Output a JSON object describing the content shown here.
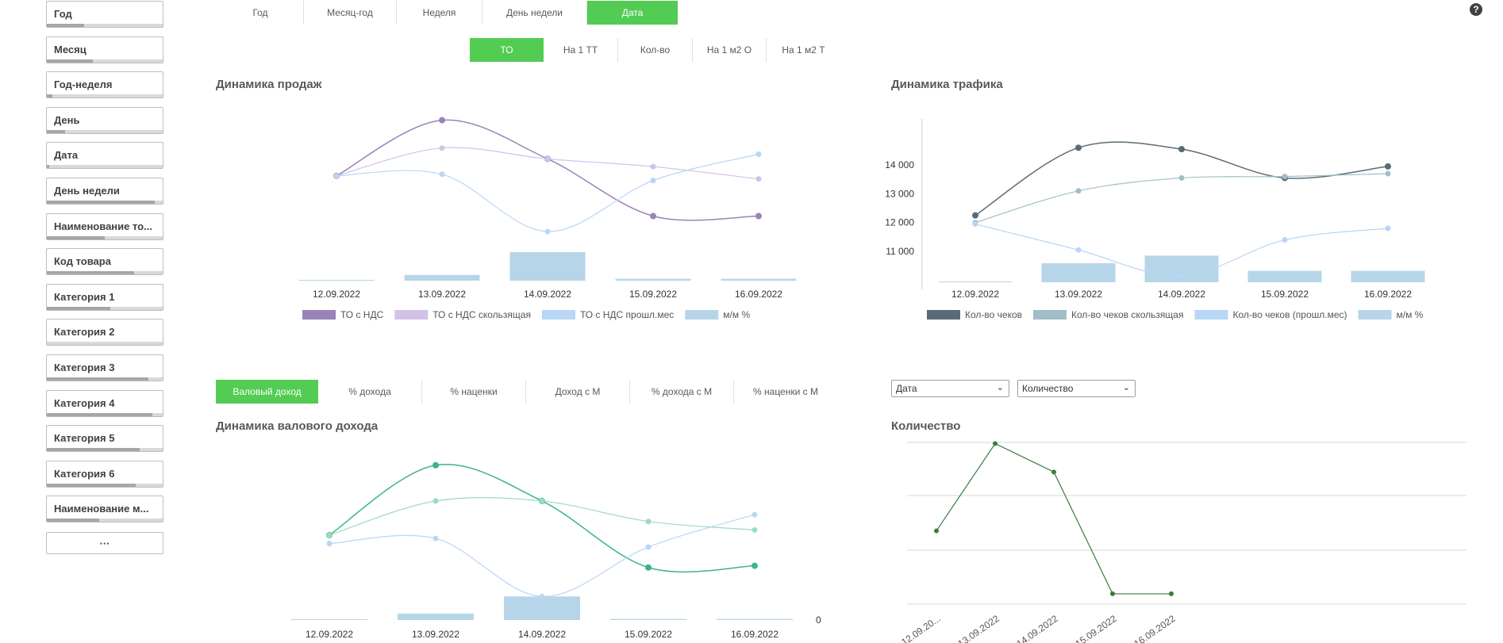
{
  "filters": [
    {
      "label": "Год",
      "fill": 0.32
    },
    {
      "label": "Месяц",
      "fill": 0.4
    },
    {
      "label": "Год-неделя",
      "fill": 0.05
    },
    {
      "label": "День",
      "fill": 0.16
    },
    {
      "label": "Дата",
      "fill": 0.02
    },
    {
      "label": "День недели",
      "fill": 0.93
    },
    {
      "label": "Наименование то...",
      "fill": 0.5
    },
    {
      "label": "Код товара",
      "fill": 0.75
    },
    {
      "label": "Категория 1",
      "fill": 0.55
    },
    {
      "label": "Категория 2",
      "fill": 0.0
    },
    {
      "label": "Категория 3",
      "fill": 0.88
    },
    {
      "label": "Категория 4",
      "fill": 0.91
    },
    {
      "label": "Категория 5",
      "fill": 0.8
    },
    {
      "label": "Категория 6",
      "fill": 0.77
    },
    {
      "label": "Наименование м...",
      "fill": 0.45
    }
  ],
  "more_label": "···",
  "period_tabs": [
    "Год",
    "Месяц-год",
    "Неделя",
    "День недели",
    "Дата"
  ],
  "period_active": 4,
  "metric_tabs": [
    "ТО",
    "На 1 ТТ",
    "Кол-во",
    "На 1 м2 О",
    "На 1 м2 Т"
  ],
  "metric_active": 0,
  "income_tabs": [
    "Валовый доход",
    "% дохода",
    "% наценки",
    "Доход с М",
    "% дохода с М",
    "% наценки с М"
  ],
  "income_active": 0,
  "dropdowns": {
    "dim": "Дата",
    "measure": "Количество"
  },
  "help_icon": "question-icon",
  "colors": {
    "accent": "#52cc52",
    "sales": "#9983b8",
    "sales_roll": "#d2c2e8",
    "prev": "#b8d6f5",
    "mm": "#b7d5e8",
    "traffic": "#5b6b75",
    "traffic_roll": "#a0bec9",
    "income": "#3db390",
    "income_roll": "#9ddbbf",
    "qty": "#3d7a3d"
  },
  "charts": {
    "sales": {
      "title": "Динамика продаж",
      "chart_data": {
        "type": "line",
        "categories": [
          "12.09.2022",
          "13.09.2022",
          "14.09.2022",
          "15.09.2022",
          "16.09.2022"
        ],
        "series": [
          {
            "name": "ТО с НДС",
            "values": [
              0.56,
              0.92,
              0.67,
              0.3,
              0.3
            ]
          },
          {
            "name": "ТО с НДС скользящая",
            "values": [
              0.56,
              0.74,
              0.67,
              0.62,
              0.54
            ]
          },
          {
            "name": "ТО с НДС прошл.мес",
            "values": [
              0.56,
              0.57,
              0.2,
              0.53,
              0.7
            ]
          }
        ],
        "bars": {
          "name": "м/м %",
          "values": [
            0,
            0.03,
            0.15,
            0.01,
            0.01
          ]
        },
        "legend": [
          "ТО с НДС",
          "ТО с НДС скользящая",
          "ТО с НДС прошл.мес",
          "м/м %"
        ]
      }
    },
    "traffic": {
      "title": "Динамика трафика",
      "chart_data": {
        "type": "line",
        "categories": [
          "12.09.2022",
          "13.09.2022",
          "14.09.2022",
          "15.09.2022",
          "16.09.2022"
        ],
        "yticks": [
          "14 000",
          "13 000",
          "12 000",
          "11 000"
        ],
        "ytick_values": [
          14000,
          13000,
          12000,
          11000
        ],
        "ylim": [
          9900,
          15600
        ],
        "series": [
          {
            "name": "Кол-во чеков",
            "values": [
              12250,
              14600,
              14550,
              13550,
              13950
            ]
          },
          {
            "name": "Кол-во чеков скользящая",
            "values": [
              12000,
              13100,
              13550,
              13600,
              13700
            ]
          },
          {
            "name": "Кол-во чеков (прошл.мес)",
            "values": [
              11950,
              11050,
              10150,
              11400,
              11800
            ]
          }
        ],
        "bars": {
          "name": "м/м %",
          "values": [
            0,
            0.1,
            0.14,
            0.06,
            0.06
          ]
        },
        "legend": [
          "Кол-во чеков",
          "Кол-во чеков скользящая",
          "Кол-во чеков (прошл.мес)",
          "м/м %"
        ]
      }
    },
    "income": {
      "title": "Динамика валового дохода",
      "chart_data": {
        "type": "line",
        "categories": [
          "12.09.2022",
          "13.09.2022",
          "14.09.2022",
          "15.09.2022",
          "16.09.2022"
        ],
        "series": [
          {
            "values": [
              0.54,
              0.95,
              0.74,
              0.35,
              0.36
            ]
          },
          {
            "values": [
              0.54,
              0.74,
              0.74,
              0.62,
              0.57
            ]
          },
          {
            "values": [
              0.49,
              0.52,
              0.18,
              0.47,
              0.66
            ]
          }
        ],
        "bars": {
          "values": [
            0.005,
            0.06,
            0.22,
            0.01,
            0.01
          ]
        },
        "zero_label": "0"
      }
    },
    "quantity": {
      "title": "Количество",
      "chart_data": {
        "type": "line",
        "categories": [
          "12.09.20...",
          "13.09.2022",
          "14.09.2022",
          "15.09.2022",
          "16.09.2022"
        ],
        "series": [
          {
            "values": [
              0.49,
              0.92,
              0.78,
              0.18,
              0.18
            ]
          }
        ]
      }
    }
  }
}
